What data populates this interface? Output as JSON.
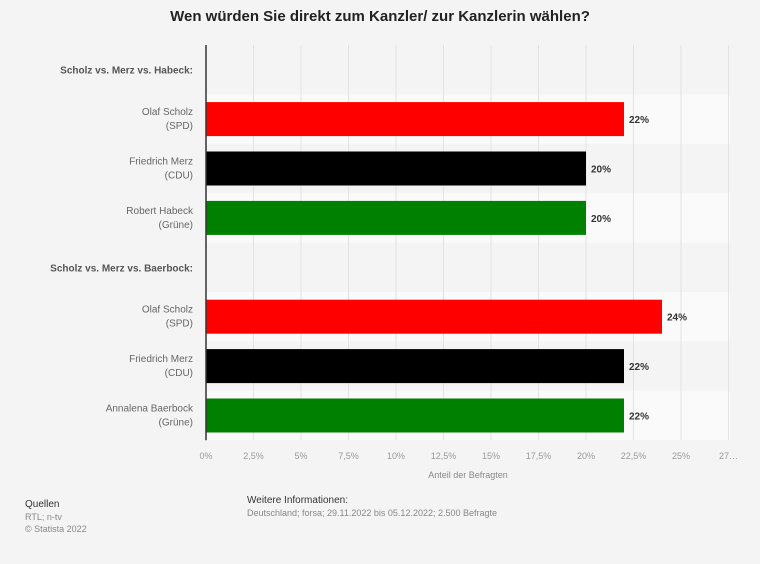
{
  "chart_data": {
    "type": "bar",
    "title": "Wen würden Sie direkt zum Kanzler/ zur Kanzlerin wählen?",
    "xlabel": "Anteil der Befragten",
    "xlim": [
      0,
      27.5
    ],
    "ticks": [
      "0%",
      "2,5%",
      "5%",
      "7,5%",
      "10%",
      "12,5%",
      "15%",
      "17,5%",
      "20%",
      "22,5%",
      "25%",
      "27…"
    ],
    "groups": [
      {
        "label": "Scholz vs. Merz vs. Habeck:",
        "rows": [
          {
            "name": [
              "Olaf Scholz",
              "(SPD)"
            ],
            "value": 22,
            "label": "22%",
            "color": "#ff0000"
          },
          {
            "name": [
              "Friedrich Merz",
              "(CDU)"
            ],
            "value": 20,
            "label": "20%",
            "color": "#000000"
          },
          {
            "name": [
              "Robert Habeck",
              "(Grüne)"
            ],
            "value": 20,
            "label": "20%",
            "color": "#008000"
          }
        ]
      },
      {
        "label": "Scholz vs. Merz vs. Baerbock:",
        "rows": [
          {
            "name": [
              "Olaf Scholz",
              "(SPD)"
            ],
            "value": 24,
            "label": "24%",
            "color": "#ff0000"
          },
          {
            "name": [
              "Friedrich Merz",
              "(CDU)"
            ],
            "value": 22,
            "label": "22%",
            "color": "#000000"
          },
          {
            "name": [
              "Annalena Baerbock",
              "(Grüne)"
            ],
            "value": 22,
            "label": "22%",
            "color": "#008000"
          }
        ]
      }
    ]
  },
  "footer": {
    "sources_title": "Quellen",
    "sources": "RTL; n-tv",
    "copyright": "© Statista 2022",
    "info_title": "Weitere Informationen:",
    "info": "Deutschland; forsa; 29.11.2022 bis 05.12.2022; 2.500 Befragte"
  }
}
